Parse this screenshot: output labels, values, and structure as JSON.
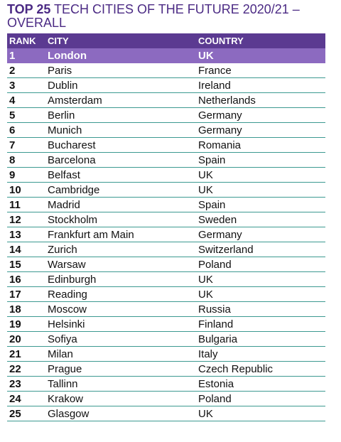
{
  "title": {
    "bold_part": "TOP 25",
    "rest_line1": " TECH CITIES OF THE FUTURE 2020/21 –",
    "line2": "OVERALL"
  },
  "table": {
    "headers": {
      "rank": "RANK",
      "city": "CITY",
      "country": "COUNTRY"
    },
    "rows": [
      {
        "rank": "1",
        "city": "London",
        "country": "UK"
      },
      {
        "rank": "2",
        "city": "Paris",
        "country": "France"
      },
      {
        "rank": "3",
        "city": "Dublin",
        "country": "Ireland"
      },
      {
        "rank": "4",
        "city": "Amsterdam",
        "country": "Netherlands"
      },
      {
        "rank": "5",
        "city": "Berlin",
        "country": "Germany"
      },
      {
        "rank": "6",
        "city": "Munich",
        "country": "Germany"
      },
      {
        "rank": "7",
        "city": "Bucharest",
        "country": "Romania"
      },
      {
        "rank": "8",
        "city": "Barcelona",
        "country": "Spain"
      },
      {
        "rank": "9",
        "city": "Belfast",
        "country": "UK"
      },
      {
        "rank": "10",
        "city": "Cambridge",
        "country": "UK"
      },
      {
        "rank": "11",
        "city": "Madrid",
        "country": "Spain"
      },
      {
        "rank": "12",
        "city": "Stockholm",
        "country": "Sweden"
      },
      {
        "rank": "13",
        "city": "Frankfurt am Main",
        "country": "Germany"
      },
      {
        "rank": "14",
        "city": "Zurich",
        "country": "Switzerland"
      },
      {
        "rank": "15",
        "city": "Warsaw",
        "country": "Poland"
      },
      {
        "rank": "16",
        "city": "Edinburgh",
        "country": "UK"
      },
      {
        "rank": "17",
        "city": "Reading",
        "country": "UK"
      },
      {
        "rank": "18",
        "city": "Moscow",
        "country": "Russia"
      },
      {
        "rank": "19",
        "city": "Helsinki",
        "country": "Finland"
      },
      {
        "rank": "20",
        "city": "Sofiya",
        "country": "Bulgaria"
      },
      {
        "rank": "21",
        "city": "Milan",
        "country": "Italy"
      },
      {
        "rank": "22",
        "city": "Prague",
        "country": "Czech Republic"
      },
      {
        "rank": "23",
        "city": "Tallinn",
        "country": "Estonia"
      },
      {
        "rank": "24",
        "city": "Krakow",
        "country": "Poland"
      },
      {
        "rank": "25",
        "city": "Glasgow",
        "country": "UK"
      }
    ]
  },
  "colors": {
    "title": "#4b2a84",
    "header_bg": "#5b3a91",
    "highlight_bg": "#8c6ac0",
    "divider": "#3d9a91"
  }
}
